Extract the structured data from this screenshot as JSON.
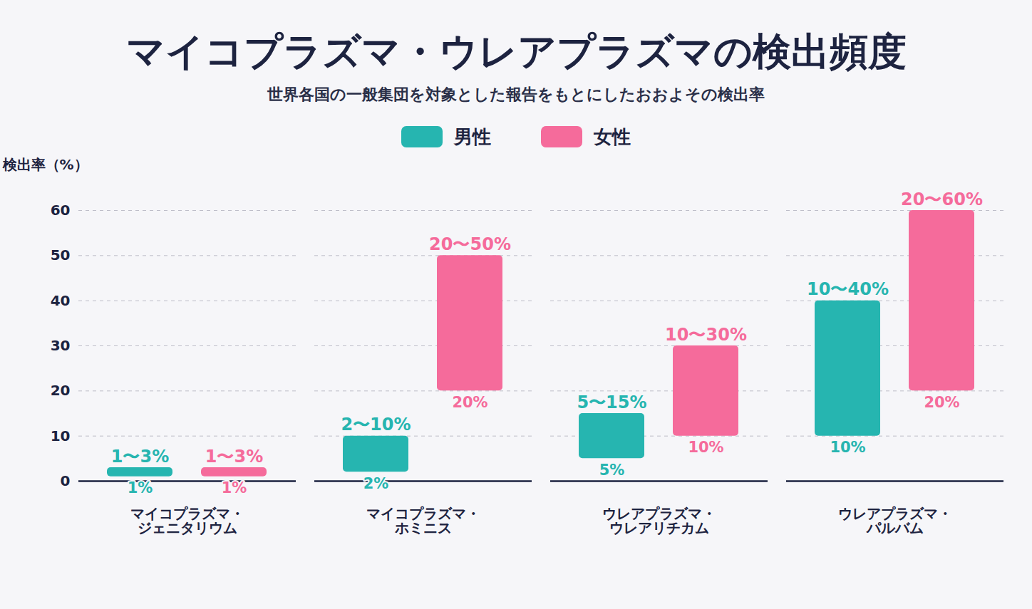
{
  "chart_data": {
    "type": "bar",
    "title": "マイコプラズマ・ウレアプラズマの検出頻度",
    "subtitle": "世界各国の一般集団を対象とした報告をもとにしたおおよその検出率",
    "y_label": "検出率（%）",
    "categories": [
      "マイコプラズマ・ジェニタリウム",
      "マイコプラズマ・ホミニス",
      "ウレアプラズマ・ウレアリチカム",
      "ウレアプラズマ・パルバム"
    ],
    "series": [
      {
        "name": "男性",
        "color": "#26b5b0",
        "values": [
          [
            1,
            3
          ],
          [
            2,
            10
          ],
          [
            5,
            15
          ],
          [
            10,
            40
          ]
        ],
        "value_labels": [
          "1〜3%",
          "2〜10%",
          "5〜15%",
          "10〜40%"
        ],
        "low_labels": [
          "1%",
          "2%",
          "5%",
          "10%"
        ]
      },
      {
        "name": "女性",
        "color": "#f56b9b",
        "values": [
          [
            1,
            3
          ],
          [
            20,
            50
          ],
          [
            10,
            30
          ],
          [
            20,
            60
          ]
        ],
        "value_labels": [
          "1〜3%",
          "20〜50%",
          "10〜30%",
          "20〜60%"
        ],
        "low_labels": [
          "1%",
          "20%",
          "10%",
          "20%"
        ]
      }
    ],
    "ylim": [
      0,
      60
    ],
    "yticks": [
      0,
      10,
      20,
      30,
      40,
      50,
      60
    ],
    "grid": true,
    "legend": "top",
    "data_labels": true
  }
}
